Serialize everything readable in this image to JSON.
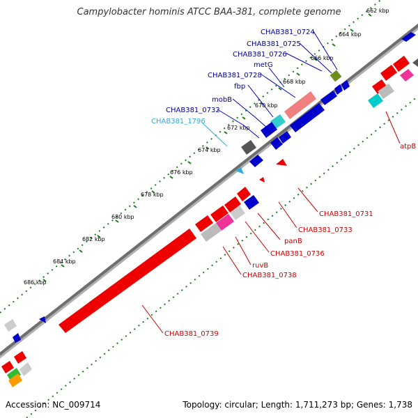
{
  "title": "Campylobacter hominis ATCC BAA-381, complete genome",
  "footer": {
    "accession": "Accession: NC_009714",
    "summary": "Topology: circular; Length: 1,711,273 bp; Genes: 1,738"
  },
  "ticks": [
    "662 kbp",
    "664 kbp",
    "666 kbp",
    "668 kbp",
    "670 kbp",
    "672 kbp",
    "674 kbp",
    "676 kbp",
    "678 kbp",
    "680 kbp",
    "682 kbp",
    "684 kbp",
    "686 kbp"
  ],
  "labels_forward": [
    "CHAB381_0724",
    "CHAB381_0725",
    "CHAB381_0726",
    "metG",
    "CHAB381_0728",
    "fbp",
    "mobB",
    "CHAB381_0732",
    "CHAB381_1796"
  ],
  "labels_reverse": [
    "atpB",
    "CHAB381_0731",
    "CHAB381_0733",
    "panB",
    "CHAB381_0736",
    "ruvB",
    "CHAB381_0738",
    "CHAB381_0739"
  ],
  "colors": {
    "forward_label": "#00008b",
    "reverse_label": "#cc0000",
    "rna_label": "#33aadd",
    "backbone": "#777777",
    "tick": "#1a7a1a"
  }
}
